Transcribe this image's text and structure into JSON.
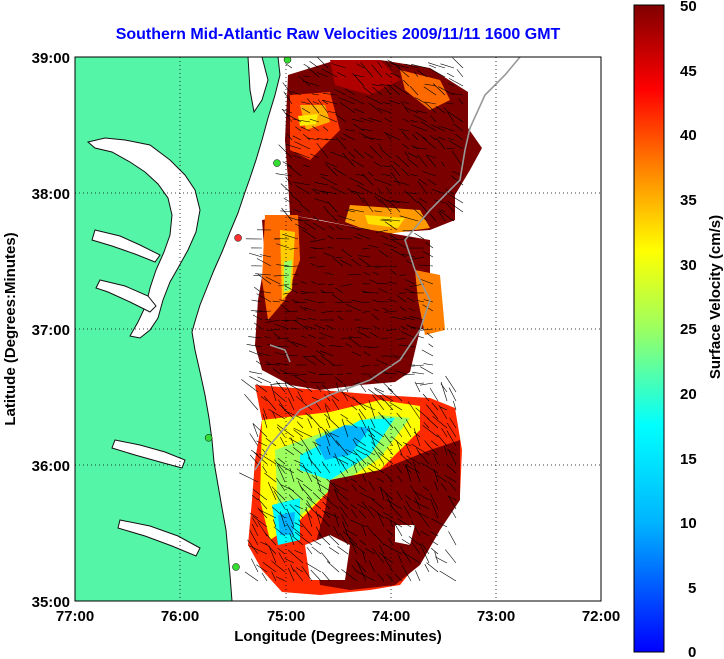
{
  "title": "Southern Mid-Atlantic Raw Velocities 2009/11/11 1600 GMT",
  "x_axis": {
    "label": "Longitude (Degrees:Minutes)",
    "ticks": [
      "77:00",
      "76:00",
      "75:00",
      "74:00",
      "73:00",
      "72:00"
    ],
    "range": [
      -77,
      -72
    ]
  },
  "y_axis": {
    "label": "Latitude (Degrees:Minutes)",
    "ticks": [
      "39:00",
      "38:00",
      "37:00",
      "36:00",
      "35:00"
    ],
    "range": [
      35,
      39
    ]
  },
  "colorbar": {
    "label": "Surface Velocity (cm/s)",
    "ticks": [
      "50",
      "45",
      "40",
      "35",
      "30",
      "25",
      "20",
      "15",
      "10",
      "5",
      "0"
    ],
    "range": [
      0,
      50
    ],
    "colormap": "jet"
  },
  "colors": {
    "land": "#55f5a8",
    "water": "#ffffff",
    "title": "#0000ff",
    "station": "#33dd33",
    "station_offline": "#ff3030"
  },
  "grid": "dotted",
  "markers": [
    {
      "name": "station",
      "lon": -74.98,
      "lat": 38.98,
      "status": "green"
    },
    {
      "name": "station",
      "lon": -75.08,
      "lat": 38.22,
      "status": "green"
    },
    {
      "name": "station",
      "lon": -75.45,
      "lat": 37.67,
      "status": "red"
    },
    {
      "name": "station",
      "lon": -75.73,
      "lat": 36.2,
      "status": "green"
    },
    {
      "name": "station",
      "lon": -75.47,
      "lat": 35.25,
      "status": "green"
    }
  ]
}
